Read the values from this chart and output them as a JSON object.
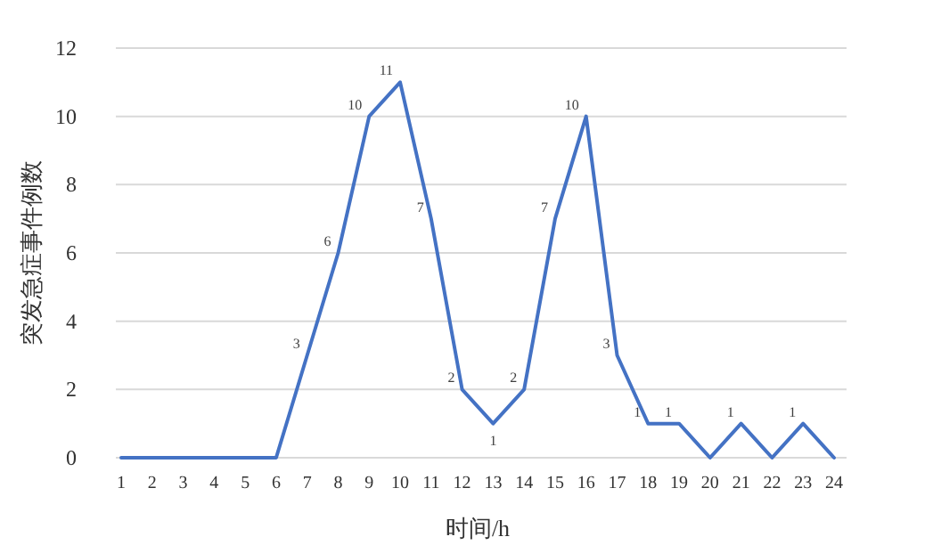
{
  "chart_data": {
    "type": "line",
    "xlabel": "时间/h",
    "ylabel": "突发急症事件例数",
    "categories": [
      "1",
      "2",
      "3",
      "4",
      "5",
      "6",
      "7",
      "8",
      "9",
      "10",
      "11",
      "12",
      "13",
      "14",
      "15",
      "16",
      "17",
      "18",
      "19",
      "20",
      "21",
      "22",
      "23",
      "24"
    ],
    "series": [
      {
        "color": "#4472c4",
        "values": [
          0,
          0,
          0,
          0,
          0,
          0,
          3,
          6,
          10,
          11,
          7,
          2,
          1,
          2,
          7,
          10,
          3,
          1,
          1,
          0,
          1,
          0,
          1,
          0
        ],
        "value_labels": [
          null,
          null,
          null,
          null,
          null,
          null,
          "3",
          "6",
          "10",
          "11",
          "7",
          "2",
          "1",
          "2",
          "7",
          "10",
          "3",
          "1",
          "1",
          null,
          "1",
          null,
          "1",
          null
        ]
      }
    ],
    "ylim": [
      0,
      12
    ],
    "yticks": [
      0,
      2,
      4,
      6,
      8,
      10,
      12
    ],
    "grid": "y",
    "marker": "none",
    "line_style": "solid"
  }
}
